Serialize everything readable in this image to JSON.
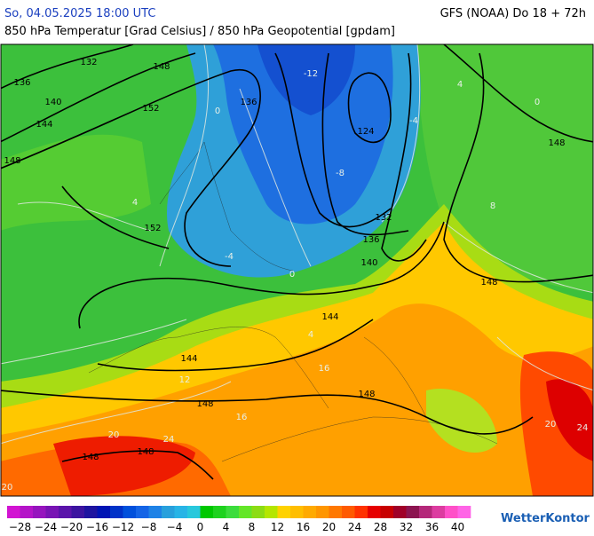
{
  "header": {
    "datetime": "So, 04.05.2025 18:00 UTC",
    "model": "GFS (NOAA) Do 18 + 72h",
    "subtitle": "850 hPa Temperatur [Grad Celsius] / 850 hPa Geopotential [gpdam]"
  },
  "map": {
    "geopotential_labels": [
      "132",
      "136",
      "140",
      "148",
      "152",
      "144",
      "148",
      "136",
      "124",
      "152",
      "132",
      "136",
      "140",
      "148",
      "148",
      "144",
      "144",
      "148",
      "148",
      "148",
      "148"
    ],
    "temperature_labels": [
      "-12",
      "-8",
      "-4",
      "4",
      "0",
      "8",
      "-4",
      "0",
      "4",
      "12",
      "16",
      "20",
      "24",
      "20",
      "24",
      "16",
      "4",
      "0",
      "20"
    ]
  },
  "legend": {
    "colors": [
      "#d214d2",
      "#b414c8",
      "#9614be",
      "#7814b4",
      "#5a14aa",
      "#3c14a0",
      "#1e14a0",
      "#0014b4",
      "#0032c8",
      "#0050dc",
      "#1464e6",
      "#1e82e6",
      "#28a0dc",
      "#28b4e6",
      "#28c8dc",
      "#00c800",
      "#1ed21e",
      "#3cdc3c",
      "#64e628",
      "#8cdc14",
      "#b4e600",
      "#ffd200",
      "#ffbe00",
      "#ffaa00",
      "#ff9600",
      "#ff7800",
      "#ff5a00",
      "#ff3200",
      "#e60000",
      "#c80000",
      "#a00028",
      "#8c1450",
      "#b4287a",
      "#dc3ca0",
      "#ff50c8",
      "#ff64e6"
    ],
    "ticks": [
      "−28",
      "−24",
      "−20",
      "−16",
      "−12",
      "−8",
      "−4",
      "0",
      "4",
      "8",
      "12",
      "16",
      "20",
      "24",
      "28",
      "32",
      "36",
      "40"
    ]
  },
  "logo": "WetterKontor"
}
